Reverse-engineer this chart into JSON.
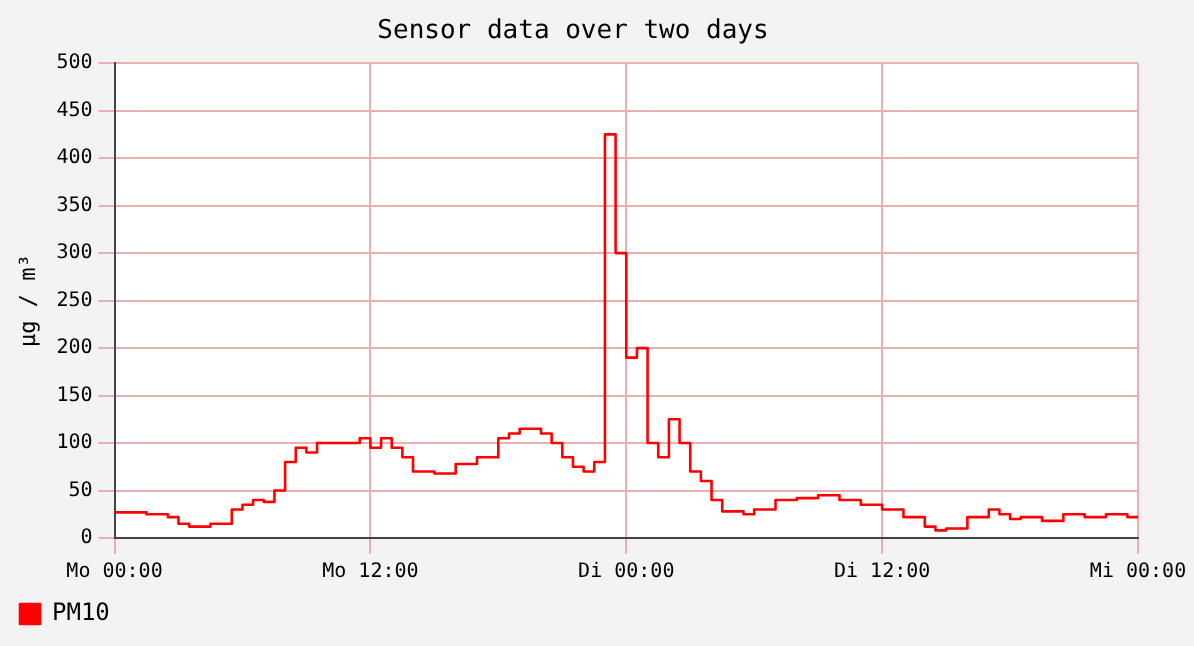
{
  "chart_data": {
    "type": "step",
    "title": "Sensor data over two days",
    "ylabel": "µg / m³",
    "categories": [
      "Mo 00:00",
      null,
      null,
      null,
      null,
      null,
      null,
      null,
      null,
      null,
      null,
      null,
      null,
      null,
      null,
      null,
      null,
      null,
      null,
      null,
      null,
      null,
      null,
      null,
      "Mo 12:00",
      null,
      null,
      null,
      null,
      null,
      null,
      null,
      null,
      null,
      null,
      null,
      null,
      null,
      null,
      null,
      null,
      null,
      null,
      null,
      null,
      null,
      null,
      null,
      "Di 00:00",
      null,
      null,
      null,
      null,
      null,
      null,
      null,
      null,
      null,
      null,
      null,
      null,
      null,
      null,
      null,
      null,
      null,
      null,
      null,
      null,
      null,
      null,
      null,
      "Di 12:00",
      null,
      null,
      null,
      null,
      null,
      null,
      null,
      null,
      null,
      null,
      null,
      null,
      null,
      null,
      null,
      null,
      null,
      null,
      null,
      null,
      null,
      null,
      null,
      "Mi 00:00"
    ],
    "ylim": [
      0,
      500
    ],
    "yticks": [
      0,
      50,
      100,
      150,
      200,
      250,
      300,
      350,
      400,
      450,
      500
    ],
    "grid": true,
    "legend": "bottom left",
    "series": [
      {
        "name": "PM10",
        "color": "#ff0000",
        "values": [
          27,
          27,
          27,
          25,
          25,
          22,
          15,
          12,
          12,
          15,
          15,
          30,
          35,
          40,
          38,
          50,
          80,
          95,
          90,
          100,
          100,
          100,
          100,
          105,
          95,
          105,
          95,
          85,
          70,
          70,
          68,
          68,
          78,
          78,
          85,
          85,
          105,
          110,
          115,
          115,
          110,
          100,
          85,
          75,
          70,
          80,
          425,
          300,
          190,
          200,
          100,
          85,
          125,
          100,
          70,
          60,
          40,
          28,
          28,
          25,
          30,
          30,
          40,
          40,
          42,
          42,
          45,
          45,
          40,
          40,
          35,
          35,
          30,
          30,
          22,
          22,
          12,
          8,
          10,
          10,
          22,
          22,
          30,
          25,
          20,
          22,
          22,
          18,
          18,
          25,
          25,
          22,
          22,
          25,
          25,
          22,
          22
        ]
      }
    ]
  }
}
